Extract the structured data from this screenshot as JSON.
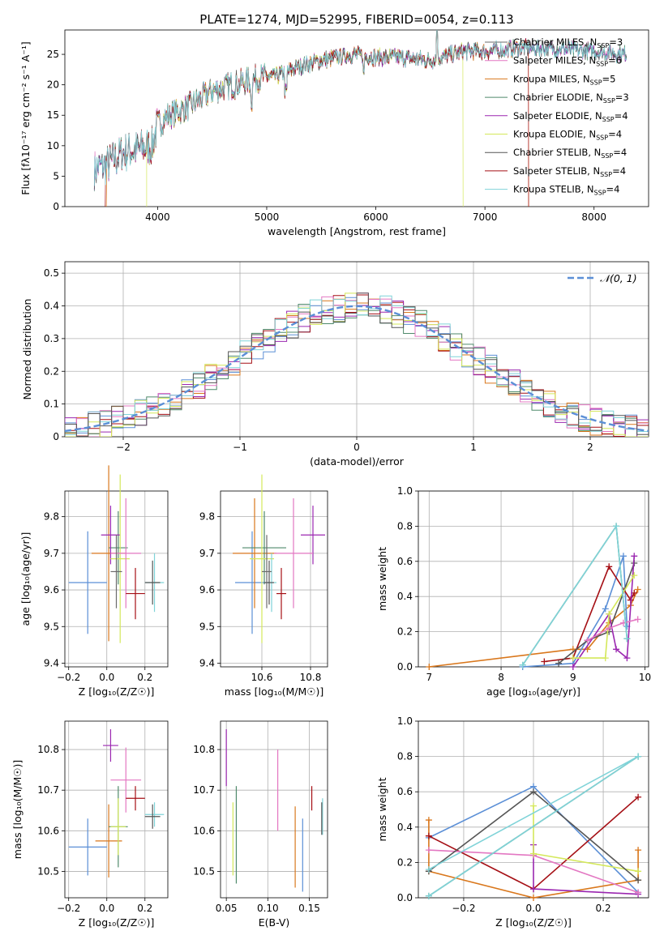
{
  "colors": {
    "Chabrier MILES": "#6b6b6b",
    "Salpeter MILES": "#e377c2",
    "Kroupa MILES": "#d9771c",
    "Chabrier ELODIE": "#4f8a6b",
    "Salpeter ELODIE": "#9b27b0",
    "Kroupa ELODIE": "#d4e85a",
    "Chabrier STELIB": "#555555",
    "Salpeter STELIB": "#a50f15",
    "Kroupa STELIB": "#7fd3d8",
    "normal_curve": "#5b8fd6",
    "blue_model": "#5b8fd6"
  },
  "chart_data": [
    {
      "id": "spectrum",
      "type": "line",
      "title": "PLATE=1274, MJD=52995, FIBERID=0054, z=0.113",
      "xlabel": "wavelength [Angstrom, rest frame]",
      "ylabel": "Flux [fλ10⁻¹⁷ erg cm⁻² s⁻¹ A⁻¹]",
      "xlim": [
        3150,
        8500
      ],
      "ylim": [
        0,
        29
      ],
      "xticks": [
        "4000",
        "5000",
        "6000",
        "7000",
        "8000"
      ],
      "yticks": [
        "0",
        "5",
        "10",
        "15",
        "20",
        "25"
      ],
      "legend_position": "right",
      "legend": [
        "Chabrier MILES, N_SSP=3",
        "Salpeter MILES, N_SSP=6",
        "Kroupa MILES, N_SSP=5",
        "Chabrier ELODIE, N_SSP=3",
        "Salpeter ELODIE, N_SSP=4",
        "Kroupa ELODIE, N_SSP=4",
        "Chabrier STELIB, N_SSP=4",
        "Salpeter STELIB, N_SSP=4",
        "Kroupa STELIB, N_SSP=4"
      ],
      "continuum": {
        "x": [
          3420,
          3550,
          3700,
          3850,
          3950,
          4000,
          4100,
          4300,
          4500,
          4700,
          4900,
          5100,
          5300,
          5500,
          5800,
          6000,
          6200,
          6500,
          6800,
          7000,
          7300,
          7600,
          8000,
          8300
        ],
        "y": [
          6,
          7,
          9,
          9.5,
          10,
          13.5,
          15,
          16.5,
          19,
          20,
          21,
          21.5,
          23,
          24,
          25,
          24.5,
          24.5,
          24,
          25.5,
          25.5,
          26,
          26,
          25.5,
          25
        ]
      },
      "cutoffs": [
        {
          "model": "Salpeter STELIB",
          "lower": 3520,
          "upper": 7400
        },
        {
          "model": "Kroupa MILES",
          "lower": 3530,
          "upper": 7400
        },
        {
          "model": "Kroupa ELODIE",
          "lower": 3900,
          "upper": 6800
        }
      ]
    },
    {
      "id": "residuals",
      "type": "step",
      "xlabel": "(data-model)/error",
      "ylabel": "Normed distribution",
      "xlim": [
        -2.5,
        2.5
      ],
      "ylim": [
        0,
        0.535
      ],
      "xticks": [
        -2,
        -1,
        0,
        1,
        2
      ],
      "yticks": [
        0,
        0.1,
        0.2,
        0.3,
        0.4,
        0.5
      ],
      "legend_position": "top-right",
      "legend": [
        "𝒩(0, 1)"
      ],
      "series_colors": [
        "#5b8fd6",
        "#d9771c",
        "#4f8a6b",
        "#a50f15",
        "#9b27b0",
        "#e377c2",
        "#d4e85a",
        "#7fd3d8",
        "#555555"
      ],
      "bins": {
        "edges_start": -2.5,
        "width": 0.1,
        "values_sample": [
          [
            0.02,
            0.03,
            0.04,
            0.08,
            0.05,
            0.06,
            0.09,
            0.1,
            0.13,
            0.11,
            0.13,
            0.12,
            0.18,
            0.2,
            0.22,
            0.25,
            0.24,
            0.2,
            0.3,
            0.32,
            0.34,
            0.31,
            0.37,
            0.38,
            0.4,
            0.39,
            0.42,
            0.44,
            0.41,
            0.4,
            0.43,
            0.45,
            0.4,
            0.34,
            0.38,
            0.33,
            0.3,
            0.25,
            0.22,
            0.28,
            0.23,
            0.2,
            0.18,
            0.17,
            0.12,
            0.11,
            0.09,
            0.07,
            0.04,
            0.03
          ]
        ]
      }
    },
    {
      "id": "age_vs_Z",
      "type": "scatter",
      "xlabel": "Z [log₁₀(Z/Z☉)]",
      "ylabel": "age  [log₁₀(age/yr)]",
      "xlim": [
        -0.22,
        0.32
      ],
      "ylim": [
        9.39,
        9.87
      ],
      "xticks": [
        "−0.2",
        "0.0",
        "0.2"
      ],
      "yticks": [
        "9.4",
        "9.5",
        "9.6",
        "9.7",
        "9.8"
      ],
      "points": [
        {
          "model": "blue_model",
          "x": -0.1,
          "y": 9.62,
          "xerr": 0.1,
          "yerr": 0.14
        },
        {
          "model": "Kroupa MILES",
          "x": 0.01,
          "y": 9.7,
          "xerr": 0.09,
          "yerr": 0.24
        },
        {
          "model": "Chabrier ELODIE",
          "x": 0.06,
          "y": 9.715,
          "xerr": 0.05,
          "yerr": 0.1
        },
        {
          "model": "Salpeter ELODIE",
          "x": 0.02,
          "y": 9.75,
          "xerr": 0.05,
          "yerr": 0.08
        },
        {
          "model": "Kroupa ELODIE",
          "x": 0.07,
          "y": 9.685,
          "xerr": 0.05,
          "yerr": 0.23
        },
        {
          "model": "Salpeter MILES",
          "x": 0.1,
          "y": 9.7,
          "xerr": 0.08,
          "yerr": 0.15
        },
        {
          "model": "Salpeter STELIB",
          "x": 0.15,
          "y": 9.59,
          "xerr": 0.05,
          "yerr": 0.07
        },
        {
          "model": "Kroupa STELIB",
          "x": 0.25,
          "y": 9.62,
          "xerr": 0.05,
          "yerr": 0.08
        },
        {
          "model": "Chabrier STELIB",
          "x": 0.24,
          "y": 9.62,
          "xerr": 0.04,
          "yerr": 0.06
        },
        {
          "model": "Chabrier MILES",
          "x": 0.05,
          "y": 9.65,
          "xerr": 0.03,
          "yerr": 0.1
        }
      ]
    },
    {
      "id": "age_vs_mass",
      "type": "scatter",
      "xlabel": "mass [log₁₀(M/M☉)]",
      "ylabel": "",
      "xlim": [
        10.43,
        10.87
      ],
      "ylim": [
        9.39,
        9.87
      ],
      "xticks": [
        "10.6",
        "10.8"
      ],
      "yticks": [
        "9.4",
        "9.5",
        "9.6",
        "9.7",
        "9.8"
      ],
      "points": [
        {
          "model": "blue_model",
          "x": 10.56,
          "y": 9.62,
          "xerr": 0.07,
          "yerr": 0.14
        },
        {
          "model": "Kroupa MILES",
          "x": 10.57,
          "y": 9.7,
          "xerr": 0.09,
          "yerr": 0.15
        },
        {
          "model": "Chabrier ELODIE",
          "x": 10.61,
          "y": 9.715,
          "xerr": 0.09,
          "yerr": 0.1
        },
        {
          "model": "Salpeter ELODIE",
          "x": 10.81,
          "y": 9.75,
          "xerr": 0.05,
          "yerr": 0.08
        },
        {
          "model": "Kroupa ELODIE",
          "x": 10.6,
          "y": 9.685,
          "xerr": 0.05,
          "yerr": 0.23
        },
        {
          "model": "Salpeter MILES",
          "x": 10.73,
          "y": 9.7,
          "xerr": 0.08,
          "yerr": 0.15
        },
        {
          "model": "Salpeter STELIB",
          "x": 10.68,
          "y": 9.59,
          "xerr": 0.02,
          "yerr": 0.07
        },
        {
          "model": "Kroupa STELIB",
          "x": 10.64,
          "y": 9.62,
          "xerr": 0.02,
          "yerr": 0.08
        },
        {
          "model": "Chabrier STELIB",
          "x": 10.63,
          "y": 9.62,
          "xerr": 0.02,
          "yerr": 0.06
        },
        {
          "model": "Chabrier MILES",
          "x": 10.62,
          "y": 9.65,
          "xerr": 0.02,
          "yerr": 0.1
        }
      ]
    },
    {
      "id": "mass_weight_vs_age",
      "type": "line",
      "xlabel": "age  [log₁₀(age/yr)]",
      "ylabel": "mass weight",
      "xlim": [
        6.85,
        10.05
      ],
      "ylim": [
        0,
        1
      ],
      "xticks": [
        "7",
        "8",
        "9",
        "10"
      ],
      "yticks": [
        "0.0",
        "0.2",
        "0.4",
        "0.6",
        "0.8",
        "1.0"
      ],
      "series": [
        {
          "model": "Kroupa MILES",
          "x": [
            7.0,
            9.0,
            9.2,
            9.5,
            9.8,
            9.9
          ],
          "y": [
            0.0,
            0.1,
            0.1,
            0.25,
            0.35,
            0.44
          ]
        },
        {
          "model": "blue_model",
          "x": [
            8.3,
            9.0,
            9.45,
            9.7,
            9.75
          ],
          "y": [
            0.0,
            0.02,
            0.33,
            0.63,
            0.23
          ]
        },
        {
          "model": "Salpeter STELIB",
          "x": [
            8.6,
            9.0,
            9.5,
            9.8,
            9.85
          ],
          "y": [
            0.03,
            0.05,
            0.57,
            0.38,
            0.42
          ]
        },
        {
          "model": "Chabrier STELIB",
          "x": [
            8.8,
            9.2,
            9.5,
            9.85
          ],
          "y": [
            0.02,
            0.15,
            0.2,
            0.59
          ]
        },
        {
          "model": "Salpeter ELODIE",
          "x": [
            9.0,
            9.5,
            9.6,
            9.75,
            9.85
          ],
          "y": [
            0.0,
            0.3,
            0.1,
            0.05,
            0.63
          ]
        },
        {
          "model": "Kroupa ELODIE",
          "x": [
            9.0,
            9.45,
            9.5,
            9.85
          ],
          "y": [
            0.05,
            0.05,
            0.3,
            0.52
          ]
        },
        {
          "model": "Salpeter MILES",
          "x": [
            9.2,
            9.5,
            9.7,
            9.9
          ],
          "y": [
            0.15,
            0.22,
            0.25,
            0.27
          ]
        },
        {
          "model": "Chabrier ELODIE",
          "x": [
            8.3,
            9.6,
            9.75
          ],
          "y": [
            0.01,
            0.8,
            0.16
          ]
        },
        {
          "model": "Kroupa STELIB",
          "x": [
            8.3,
            9.6,
            9.75
          ],
          "y": [
            0.01,
            0.8,
            0.16
          ]
        }
      ]
    },
    {
      "id": "mass_vs_Z",
      "type": "scatter",
      "xlabel": "Z [log₁₀(Z/Z☉)]",
      "ylabel": "mass [log₁₀(M/M☉)]",
      "xlim": [
        -0.22,
        0.32
      ],
      "ylim": [
        10.435,
        10.87
      ],
      "xticks": [
        "−0.2",
        "0.0",
        "0.2"
      ],
      "yticks": [
        "10.5",
        "10.6",
        "10.7",
        "10.8"
      ],
      "points": [
        {
          "model": "blue_model",
          "x": -0.1,
          "y": 10.56,
          "xerr": 0.1,
          "yerr": 0.07
        },
        {
          "model": "Kroupa MILES",
          "x": 0.01,
          "y": 10.575,
          "xerr": 0.07,
          "yerr": 0.09
        },
        {
          "model": "Chabrier ELODIE",
          "x": 0.06,
          "y": 10.61,
          "xerr": 0.05,
          "yerr": 0.1
        },
        {
          "model": "Salpeter ELODIE",
          "x": 0.02,
          "y": 10.81,
          "xerr": 0.04,
          "yerr": 0.04
        },
        {
          "model": "Kroupa ELODIE",
          "x": 0.06,
          "y": 10.61,
          "xerr": 0.04,
          "yerr": 0.07
        },
        {
          "model": "Salpeter MILES",
          "x": 0.1,
          "y": 10.725,
          "xerr": 0.08,
          "yerr": 0.08
        },
        {
          "model": "Salpeter STELIB",
          "x": 0.15,
          "y": 10.68,
          "xerr": 0.05,
          "yerr": 0.03
        },
        {
          "model": "Kroupa STELIB",
          "x": 0.25,
          "y": 10.64,
          "xerr": 0.05,
          "yerr": 0.03
        },
        {
          "model": "Chabrier STELIB",
          "x": 0.24,
          "y": 10.635,
          "xerr": 0.04,
          "yerr": 0.03
        }
      ]
    },
    {
      "id": "mass_vs_ebv",
      "type": "scatter",
      "xlabel": "E(B-V)",
      "ylabel": "",
      "xlim": [
        0.043,
        0.172
      ],
      "ylim": [
        10.435,
        10.87
      ],
      "xticks": [
        "0.05",
        "0.10",
        "0.15"
      ],
      "yticks": [
        "10.5",
        "10.6",
        "10.7",
        "10.8"
      ],
      "points": [
        {
          "model": "Salpeter ELODIE",
          "x": 0.05,
          "y": 10.78,
          "xerr": 0,
          "yerr": 0.07
        },
        {
          "model": "Kroupa ELODIE",
          "x": 0.058,
          "y": 10.58,
          "xerr": 0,
          "yerr": 0.09
        },
        {
          "model": "Chabrier ELODIE",
          "x": 0.062,
          "y": 10.59,
          "xerr": 0,
          "yerr": 0.12
        },
        {
          "model": "Salpeter MILES",
          "x": 0.112,
          "y": 10.7,
          "xerr": 0,
          "yerr": 0.1
        },
        {
          "model": "Kroupa MILES",
          "x": 0.133,
          "y": 10.56,
          "xerr": 0,
          "yerr": 0.1
        },
        {
          "model": "blue_model",
          "x": 0.142,
          "y": 10.54,
          "xerr": 0,
          "yerr": 0.09
        },
        {
          "model": "Salpeter STELIB",
          "x": 0.153,
          "y": 10.68,
          "xerr": 0,
          "yerr": 0.03
        },
        {
          "model": "Kroupa STELIB",
          "x": 0.166,
          "y": 10.635,
          "xerr": 0,
          "yerr": 0.045
        },
        {
          "model": "Chabrier STELIB",
          "x": 0.165,
          "y": 10.63,
          "xerr": 0,
          "yerr": 0.04
        }
      ]
    },
    {
      "id": "mass_weight_vs_Z",
      "type": "line",
      "xlabel": "Z [log₁₀(Z/Z☉)]",
      "ylabel": "mass weight",
      "xlim": [
        -0.33,
        0.33
      ],
      "ylim": [
        0,
        1
      ],
      "xticks": [
        "−0.2",
        "0.0",
        "0.2"
      ],
      "yticks": [
        "0.0",
        "0.2",
        "0.4",
        "0.6",
        "0.8",
        "1.0"
      ],
      "series": [
        {
          "model": "blue_model",
          "x": [
            -0.3,
            0.0,
            0.3
          ],
          "y": [
            0.34,
            0.63,
            0.03
          ]
        },
        {
          "model": "Kroupa MILES",
          "x": [
            -0.3,
            -0.3,
            0.0,
            0.3,
            0.3
          ],
          "y": [
            0.44,
            0.15,
            0.0,
            0.1,
            0.27
          ]
        },
        {
          "model": "Salpeter STELIB",
          "x": [
            -0.3,
            0.0,
            0.3
          ],
          "y": [
            0.35,
            0.05,
            0.57
          ]
        },
        {
          "model": "Salpeter ELODIE",
          "x": [
            0.0,
            0.0,
            0.3
          ],
          "y": [
            0.3,
            0.05,
            0.02
          ]
        },
        {
          "model": "Salpeter MILES",
          "x": [
            -0.3,
            0.0,
            0.3
          ],
          "y": [
            0.27,
            0.24,
            0.03
          ]
        },
        {
          "model": "Kroupa ELODIE",
          "x": [
            0.0,
            0.0,
            0.3
          ],
          "y": [
            0.52,
            0.25,
            0.15
          ]
        },
        {
          "model": "Chabrier STELIB",
          "x": [
            -0.3,
            0.0,
            0.3
          ],
          "y": [
            0.15,
            0.6,
            0.1
          ]
        },
        {
          "model": "Chabrier ELODIE",
          "x": [
            -0.3,
            0.3
          ],
          "y": [
            0.01,
            0.8
          ]
        },
        {
          "model": "Kroupa STELIB",
          "x": [
            -0.3,
            0.3,
            -0.3
          ],
          "y": [
            0.16,
            0.8,
            0.01
          ]
        }
      ]
    }
  ]
}
